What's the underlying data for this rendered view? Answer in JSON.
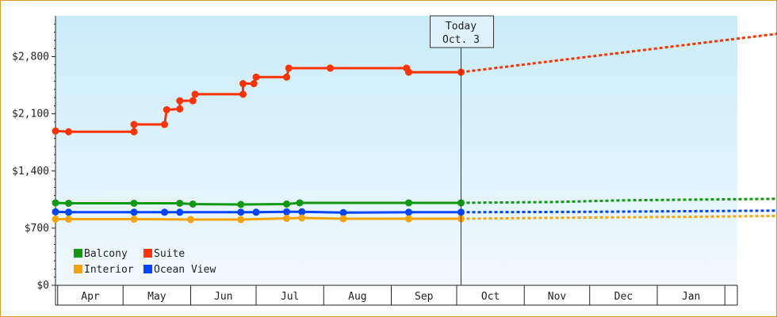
{
  "chart_data": {
    "type": "line",
    "ylim": [
      0,
      3300
    ],
    "yticks": [
      {
        "value": 0,
        "label": "$0"
      },
      {
        "value": 700,
        "label": "$700"
      },
      {
        "value": 1400,
        "label": "$1,400"
      },
      {
        "value": 2100,
        "label": "$2,100"
      },
      {
        "value": 2800,
        "label": "$2,800"
      }
    ],
    "x_range": [
      "2021-03-31",
      "2022-02-28"
    ],
    "months": [
      {
        "label": "Apr",
        "start": "2021-04-01",
        "end": "2021-04-30"
      },
      {
        "label": "May",
        "start": "2021-05-01",
        "end": "2021-05-31"
      },
      {
        "label": "Jun",
        "start": "2021-06-01",
        "end": "2021-06-30"
      },
      {
        "label": "Jul",
        "start": "2021-07-01",
        "end": "2021-07-31"
      },
      {
        "label": "Aug",
        "start": "2021-08-01",
        "end": "2021-08-31"
      },
      {
        "label": "Sep",
        "start": "2021-09-01",
        "end": "2021-09-30"
      },
      {
        "label": "Oct",
        "start": "2021-10-01",
        "end": "2021-10-31"
      },
      {
        "label": "Nov",
        "start": "2021-11-01",
        "end": "2021-11-30"
      },
      {
        "label": "Dec",
        "start": "2021-12-01",
        "end": "2021-12-31"
      },
      {
        "label": "Jan",
        "start": "2022-01-01",
        "end": "2022-01-31"
      }
    ],
    "today": {
      "date": "2021-10-03",
      "line1": "Today",
      "line2": "Oct. 3"
    },
    "legend": {
      "placement": "bottom-left",
      "columns": 2
    },
    "grid": false,
    "series": [
      {
        "name": "Suite",
        "color": "#ff3300",
        "legend_order": 1,
        "points": [
          [
            "2021-03-31",
            1890
          ],
          [
            "2021-04-06",
            1880
          ],
          [
            "2021-05-06",
            1880
          ],
          [
            "2021-05-06",
            1970
          ],
          [
            "2021-05-20",
            1970
          ],
          [
            "2021-05-21",
            2150
          ],
          [
            "2021-05-27",
            2160
          ],
          [
            "2021-05-27",
            2260
          ],
          [
            "2021-06-02",
            2260
          ],
          [
            "2021-06-03",
            2340
          ],
          [
            "2021-06-25",
            2340
          ],
          [
            "2021-06-25",
            2470
          ],
          [
            "2021-06-30",
            2470
          ],
          [
            "2021-07-01",
            2550
          ],
          [
            "2021-07-15",
            2550
          ],
          [
            "2021-07-16",
            2660
          ],
          [
            "2021-08-04",
            2660
          ],
          [
            "2021-08-04",
            2660
          ],
          [
            "2021-09-08",
            2660
          ],
          [
            "2021-09-09",
            2610
          ],
          [
            "2021-10-03",
            2610
          ]
        ],
        "forecast": [
          [
            "2021-10-03",
            2610
          ],
          [
            "2022-02-28",
            3090
          ]
        ]
      },
      {
        "name": "Balcony",
        "color": "#119911",
        "legend_order": 0,
        "points": [
          [
            "2021-03-31",
            1010
          ],
          [
            "2021-04-06",
            1005
          ],
          [
            "2021-05-06",
            1005
          ],
          [
            "2021-05-27",
            1005
          ],
          [
            "2021-06-02",
            995
          ],
          [
            "2021-06-24",
            990
          ],
          [
            "2021-07-15",
            995
          ],
          [
            "2021-07-21",
            1010
          ],
          [
            "2021-09-09",
            1010
          ],
          [
            "2021-10-03",
            1010
          ]
        ],
        "forecast": [
          [
            "2021-10-03",
            1010
          ],
          [
            "2021-11-15",
            1020
          ],
          [
            "2021-12-15",
            1040
          ],
          [
            "2022-01-20",
            1050
          ],
          [
            "2022-02-28",
            1060
          ]
        ]
      },
      {
        "name": "Ocean View",
        "color": "#0044ff",
        "legend_order": 3,
        "points": [
          [
            "2021-03-31",
            900
          ],
          [
            "2021-04-06",
            895
          ],
          [
            "2021-05-06",
            895
          ],
          [
            "2021-05-20",
            895
          ],
          [
            "2021-05-27",
            895
          ],
          [
            "2021-06-24",
            895
          ],
          [
            "2021-07-01",
            895
          ],
          [
            "2021-07-15",
            900
          ],
          [
            "2021-07-22",
            900
          ],
          [
            "2021-08-10",
            890
          ],
          [
            "2021-09-09",
            895
          ],
          [
            "2021-10-03",
            895
          ]
        ],
        "forecast": [
          [
            "2021-10-03",
            895
          ],
          [
            "2021-12-01",
            900
          ],
          [
            "2022-02-28",
            915
          ]
        ]
      },
      {
        "name": "Interior",
        "color": "#f5a30a",
        "legend_order": 2,
        "points": [
          [
            "2021-03-31",
            810
          ],
          [
            "2021-04-06",
            810
          ],
          [
            "2021-05-06",
            810
          ],
          [
            "2021-06-01",
            805
          ],
          [
            "2021-06-24",
            805
          ],
          [
            "2021-07-15",
            820
          ],
          [
            "2021-07-22",
            825
          ],
          [
            "2021-08-10",
            815
          ],
          [
            "2021-09-09",
            815
          ],
          [
            "2021-10-03",
            815
          ]
        ],
        "forecast": [
          [
            "2021-10-03",
            815
          ],
          [
            "2021-12-01",
            830
          ],
          [
            "2022-01-20",
            840
          ],
          [
            "2022-02-28",
            850
          ]
        ]
      }
    ]
  }
}
